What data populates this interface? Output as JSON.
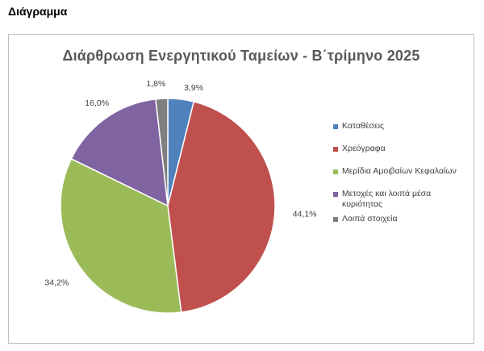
{
  "section_heading": "Διάγραμμα",
  "chart_data": {
    "type": "pie",
    "title": "Διάρθρωση Ενεργητικού Ταμείων - Β΄τρίμηνο 2025",
    "categories": [
      "Καταθέσεις",
      "Χρεόγραφα",
      "Μερίδια Αμοιβαίων Κεφαλαίων",
      "Μετοχές και λοιπά μέσα κυριότητας",
      "Λοιπά στοιχεία"
    ],
    "values": [
      3.9,
      44.1,
      34.2,
      16.0,
      1.8
    ],
    "data_labels": [
      "3,9%",
      "44,1%",
      "34,2%",
      "16,0%",
      "1,8%"
    ],
    "colors": [
      "#4f81bd",
      "#c0504d",
      "#9bbb59",
      "#8064a2",
      "#7f7f7f"
    ],
    "legend_position": "right"
  }
}
